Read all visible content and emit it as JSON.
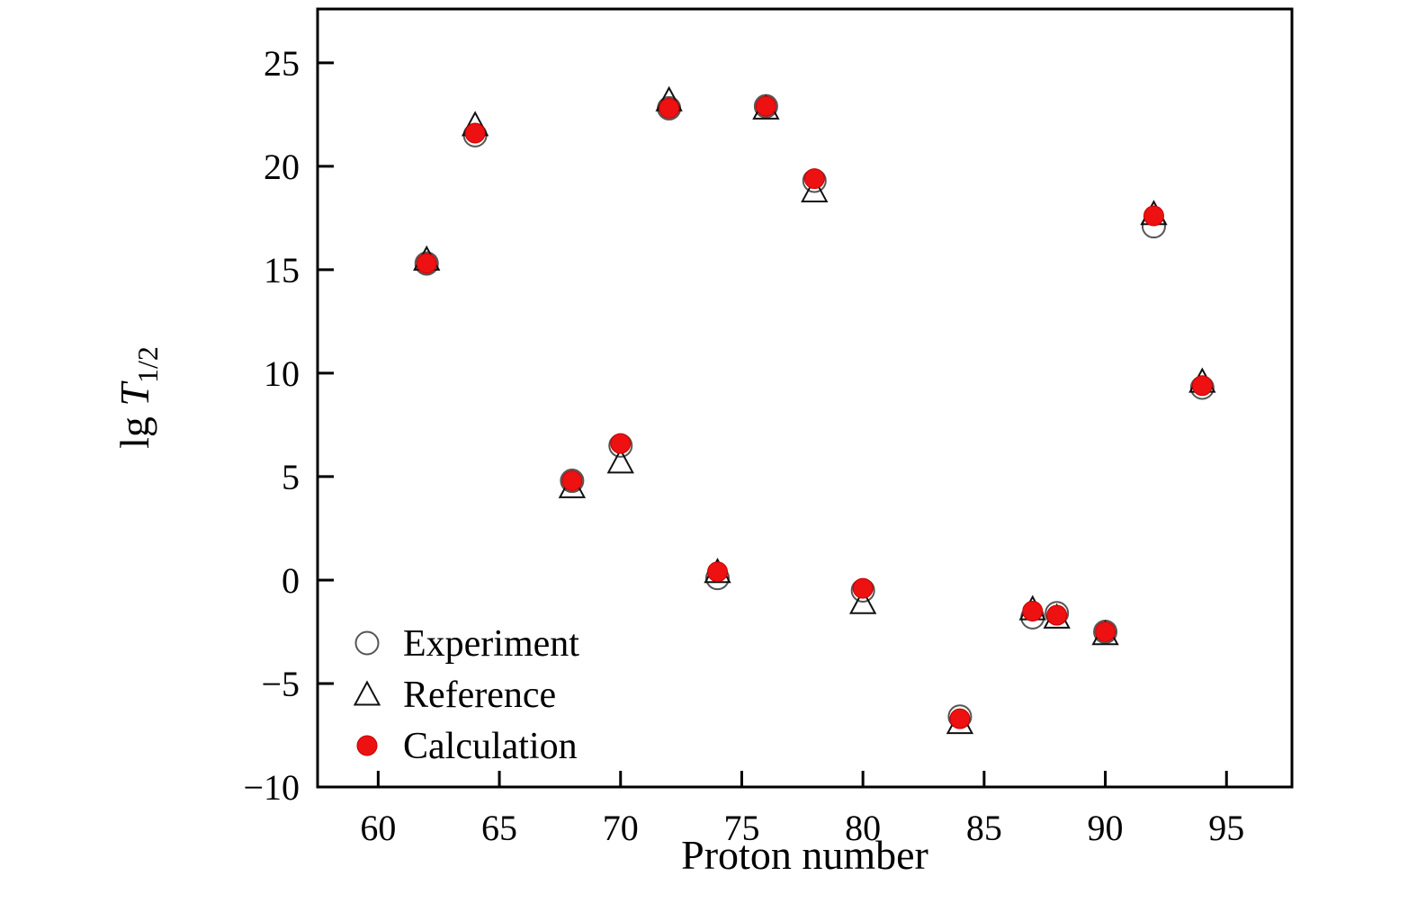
{
  "figure": {
    "background": "#ffffff",
    "frame_color": "#000000"
  },
  "chart_data": {
    "type": "scatter",
    "title": "",
    "xlabel": "Proton number",
    "ylabel": "lg T",
    "ylabel_subscript": "1/2",
    "xlim": [
      57.5,
      97.7
    ],
    "ylim": [
      -10,
      27.6
    ],
    "xticks": [
      60,
      65,
      70,
      75,
      80,
      85,
      90,
      95
    ],
    "yticks": [
      -10,
      -5,
      0,
      5,
      10,
      15,
      20,
      25
    ],
    "grid": false,
    "legend_position": "lower-left",
    "series": [
      {
        "name": "Experiment",
        "marker": "open-circle",
        "color": "#555555",
        "points": [
          [
            62,
            15.3
          ],
          [
            64,
            21.5
          ],
          [
            68,
            4.8
          ],
          [
            70,
            6.5
          ],
          [
            72,
            22.8
          ],
          [
            74,
            0.1
          ],
          [
            76,
            22.9
          ],
          [
            78,
            19.3
          ],
          [
            80,
            -0.5
          ],
          [
            84,
            -6.6
          ],
          [
            87,
            -1.8
          ],
          [
            88,
            -1.6
          ],
          [
            90,
            -2.5
          ],
          [
            92,
            17.1
          ],
          [
            94,
            9.3
          ]
        ]
      },
      {
        "name": "Reference",
        "marker": "open-triangle",
        "color": "#111111",
        "points": [
          [
            62,
            15.5
          ],
          [
            64,
            22.0
          ],
          [
            68,
            4.5
          ],
          [
            70,
            5.7
          ],
          [
            72,
            23.2
          ],
          [
            74,
            0.4
          ],
          [
            76,
            22.8
          ],
          [
            78,
            18.8
          ],
          [
            80,
            -1.1
          ],
          [
            84,
            -6.9
          ],
          [
            87,
            -1.4
          ],
          [
            88,
            -1.8
          ],
          [
            90,
            -2.6
          ],
          [
            92,
            17.7
          ],
          [
            94,
            9.6
          ]
        ]
      },
      {
        "name": "Calculation",
        "marker": "filled-circle",
        "color": "#ee1111",
        "points": [
          [
            62,
            15.3
          ],
          [
            64,
            21.6
          ],
          [
            68,
            4.8
          ],
          [
            70,
            6.6
          ],
          [
            72,
            22.8
          ],
          [
            74,
            0.4
          ],
          [
            76,
            22.9
          ],
          [
            78,
            19.4
          ],
          [
            80,
            -0.4
          ],
          [
            84,
            -6.7
          ],
          [
            87,
            -1.5
          ],
          [
            88,
            -1.7
          ],
          [
            90,
            -2.5
          ],
          [
            92,
            17.6
          ],
          [
            94,
            9.4
          ]
        ]
      }
    ]
  }
}
